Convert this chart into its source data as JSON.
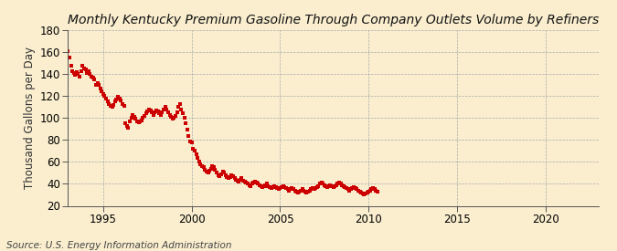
{
  "title": "Monthly Kentucky Premium Gasoline Through Company Outlets Volume by Refiners",
  "ylabel": "Thousand Gallons per Day",
  "source": "Source: U.S. Energy Information Administration",
  "background_color": "#faeecf",
  "plot_background_color": "#faeecf",
  "marker_color": "#cc0000",
  "marker": "s",
  "marker_size": 2.2,
  "xlim": [
    1993.0,
    2023.0
  ],
  "ylim": [
    20,
    180
  ],
  "yticks": [
    20,
    40,
    60,
    80,
    100,
    120,
    140,
    160,
    180
  ],
  "xticks": [
    1995,
    2000,
    2005,
    2010,
    2015,
    2020
  ],
  "title_fontsize": 10,
  "axis_fontsize": 8.5,
  "source_fontsize": 7.5,
  "data": [
    [
      1993.0,
      161.0
    ],
    [
      1993.08,
      155.0
    ],
    [
      1993.17,
      148.0
    ],
    [
      1993.25,
      143.0
    ],
    [
      1993.33,
      141.0
    ],
    [
      1993.42,
      139.0
    ],
    [
      1993.5,
      142.0
    ],
    [
      1993.58,
      140.0
    ],
    [
      1993.67,
      138.0
    ],
    [
      1993.75,
      143.0
    ],
    [
      1993.83,
      148.0
    ],
    [
      1993.92,
      145.0
    ],
    [
      1994.0,
      144.0
    ],
    [
      1994.08,
      141.0
    ],
    [
      1994.17,
      143.0
    ],
    [
      1994.25,
      140.0
    ],
    [
      1994.33,
      138.0
    ],
    [
      1994.42,
      137.0
    ],
    [
      1994.5,
      135.0
    ],
    [
      1994.58,
      130.0
    ],
    [
      1994.67,
      132.0
    ],
    [
      1994.75,
      130.0
    ],
    [
      1994.83,
      127.0
    ],
    [
      1994.92,
      124.0
    ],
    [
      1995.0,
      122.0
    ],
    [
      1995.08,
      120.0
    ],
    [
      1995.17,
      118.0
    ],
    [
      1995.25,
      115.0
    ],
    [
      1995.33,
      113.0
    ],
    [
      1995.42,
      111.0
    ],
    [
      1995.5,
      110.0
    ],
    [
      1995.58,
      112.0
    ],
    [
      1995.67,
      115.0
    ],
    [
      1995.75,
      117.0
    ],
    [
      1995.83,
      119.0
    ],
    [
      1995.92,
      118.0
    ],
    [
      1996.0,
      116.0
    ],
    [
      1996.08,
      113.0
    ],
    [
      1996.17,
      111.0
    ],
    [
      1996.25,
      95.0
    ],
    [
      1996.33,
      93.0
    ],
    [
      1996.42,
      91.0
    ],
    [
      1996.5,
      97.0
    ],
    [
      1996.58,
      100.0
    ],
    [
      1996.67,
      103.0
    ],
    [
      1996.75,
      101.0
    ],
    [
      1996.83,
      99.0
    ],
    [
      1996.92,
      97.0
    ],
    [
      1997.0,
      96.0
    ],
    [
      1997.08,
      97.0
    ],
    [
      1997.17,
      98.0
    ],
    [
      1997.25,
      100.0
    ],
    [
      1997.33,
      102.0
    ],
    [
      1997.42,
      104.0
    ],
    [
      1997.5,
      106.0
    ],
    [
      1997.58,
      108.0
    ],
    [
      1997.67,
      107.0
    ],
    [
      1997.75,
      105.0
    ],
    [
      1997.83,
      103.0
    ],
    [
      1997.92,
      105.0
    ],
    [
      1998.0,
      107.0
    ],
    [
      1998.08,
      106.0
    ],
    [
      1998.17,
      104.0
    ],
    [
      1998.25,
      103.0
    ],
    [
      1998.33,
      105.0
    ],
    [
      1998.42,
      108.0
    ],
    [
      1998.5,
      110.0
    ],
    [
      1998.58,
      108.0
    ],
    [
      1998.67,
      105.0
    ],
    [
      1998.75,
      103.0
    ],
    [
      1998.83,
      101.0
    ],
    [
      1998.92,
      99.0
    ],
    [
      1999.0,
      100.0
    ],
    [
      1999.08,
      102.0
    ],
    [
      1999.17,
      105.0
    ],
    [
      1999.25,
      110.0
    ],
    [
      1999.33,
      113.0
    ],
    [
      1999.42,
      108.0
    ],
    [
      1999.5,
      104.0
    ],
    [
      1999.58,
      100.0
    ],
    [
      1999.67,
      95.0
    ],
    [
      1999.75,
      89.0
    ],
    [
      1999.83,
      84.0
    ],
    [
      1999.92,
      79.0
    ],
    [
      2000.0,
      78.0
    ],
    [
      2000.08,
      72.0
    ],
    [
      2000.17,
      70.0
    ],
    [
      2000.25,
      67.0
    ],
    [
      2000.33,
      64.0
    ],
    [
      2000.42,
      60.0
    ],
    [
      2000.5,
      58.0
    ],
    [
      2000.58,
      56.0
    ],
    [
      2000.67,
      55.0
    ],
    [
      2000.75,
      53.0
    ],
    [
      2000.83,
      51.0
    ],
    [
      2000.92,
      50.0
    ],
    [
      2001.0,
      52.0
    ],
    [
      2001.08,
      54.0
    ],
    [
      2001.17,
      56.0
    ],
    [
      2001.25,
      55.0
    ],
    [
      2001.33,
      53.0
    ],
    [
      2001.42,
      50.0
    ],
    [
      2001.5,
      48.0
    ],
    [
      2001.58,
      47.0
    ],
    [
      2001.67,
      49.0
    ],
    [
      2001.75,
      51.0
    ],
    [
      2001.83,
      50.0
    ],
    [
      2001.92,
      48.0
    ],
    [
      2002.0,
      46.0
    ],
    [
      2002.08,
      45.0
    ],
    [
      2002.17,
      46.0
    ],
    [
      2002.25,
      48.0
    ],
    [
      2002.33,
      47.0
    ],
    [
      2002.42,
      45.0
    ],
    [
      2002.5,
      44.0
    ],
    [
      2002.58,
      43.0
    ],
    [
      2002.67,
      42.0
    ],
    [
      2002.75,
      44.0
    ],
    [
      2002.83,
      45.0
    ],
    [
      2002.92,
      43.0
    ],
    [
      2003.0,
      42.0
    ],
    [
      2003.08,
      41.0
    ],
    [
      2003.17,
      40.0
    ],
    [
      2003.25,
      39.0
    ],
    [
      2003.33,
      38.0
    ],
    [
      2003.42,
      40.0
    ],
    [
      2003.5,
      41.0
    ],
    [
      2003.58,
      42.0
    ],
    [
      2003.67,
      41.0
    ],
    [
      2003.75,
      40.0
    ],
    [
      2003.83,
      39.0
    ],
    [
      2003.92,
      38.0
    ],
    [
      2004.0,
      37.0
    ],
    [
      2004.08,
      38.0
    ],
    [
      2004.17,
      39.0
    ],
    [
      2004.25,
      40.0
    ],
    [
      2004.33,
      38.0
    ],
    [
      2004.42,
      37.0
    ],
    [
      2004.5,
      36.0
    ],
    [
      2004.58,
      37.0
    ],
    [
      2004.67,
      38.0
    ],
    [
      2004.75,
      37.0
    ],
    [
      2004.83,
      36.0
    ],
    [
      2004.92,
      35.0
    ],
    [
      2005.0,
      36.0
    ],
    [
      2005.08,
      37.0
    ],
    [
      2005.17,
      38.0
    ],
    [
      2005.25,
      37.0
    ],
    [
      2005.33,
      36.0
    ],
    [
      2005.42,
      35.0
    ],
    [
      2005.5,
      34.0
    ],
    [
      2005.58,
      35.0
    ],
    [
      2005.67,
      36.0
    ],
    [
      2005.75,
      35.0
    ],
    [
      2005.83,
      34.0
    ],
    [
      2005.92,
      33.0
    ],
    [
      2006.0,
      32.0
    ],
    [
      2006.08,
      33.0
    ],
    [
      2006.17,
      34.0
    ],
    [
      2006.25,
      35.0
    ],
    [
      2006.33,
      34.0
    ],
    [
      2006.42,
      33.0
    ],
    [
      2006.5,
      32.0
    ],
    [
      2006.58,
      33.0
    ],
    [
      2006.67,
      34.0
    ],
    [
      2006.75,
      35.0
    ],
    [
      2006.83,
      36.0
    ],
    [
      2006.92,
      35.0
    ],
    [
      2007.0,
      36.0
    ],
    [
      2007.08,
      37.0
    ],
    [
      2007.17,
      38.0
    ],
    [
      2007.25,
      40.0
    ],
    [
      2007.33,
      41.0
    ],
    [
      2007.42,
      40.0
    ],
    [
      2007.5,
      39.0
    ],
    [
      2007.58,
      38.0
    ],
    [
      2007.67,
      37.0
    ],
    [
      2007.75,
      38.0
    ],
    [
      2007.83,
      39.0
    ],
    [
      2007.92,
      38.0
    ],
    [
      2008.0,
      37.0
    ],
    [
      2008.08,
      38.0
    ],
    [
      2008.17,
      39.0
    ],
    [
      2008.25,
      40.0
    ],
    [
      2008.33,
      41.0
    ],
    [
      2008.42,
      40.0
    ],
    [
      2008.5,
      39.0
    ],
    [
      2008.58,
      38.0
    ],
    [
      2008.67,
      37.0
    ],
    [
      2008.75,
      36.0
    ],
    [
      2008.83,
      35.0
    ],
    [
      2008.92,
      34.0
    ],
    [
      2009.0,
      35.0
    ],
    [
      2009.08,
      36.0
    ],
    [
      2009.17,
      37.0
    ],
    [
      2009.25,
      36.0
    ],
    [
      2009.33,
      35.0
    ],
    [
      2009.42,
      34.0
    ],
    [
      2009.5,
      33.0
    ],
    [
      2009.58,
      32.0
    ],
    [
      2009.67,
      31.0
    ],
    [
      2009.75,
      30.0
    ],
    [
      2009.83,
      31.0
    ],
    [
      2009.92,
      32.0
    ],
    [
      2010.0,
      33.0
    ],
    [
      2010.08,
      34.0
    ],
    [
      2010.17,
      35.0
    ],
    [
      2010.25,
      36.0
    ],
    [
      2010.33,
      35.0
    ],
    [
      2010.42,
      34.0
    ],
    [
      2010.5,
      33.0
    ]
  ]
}
